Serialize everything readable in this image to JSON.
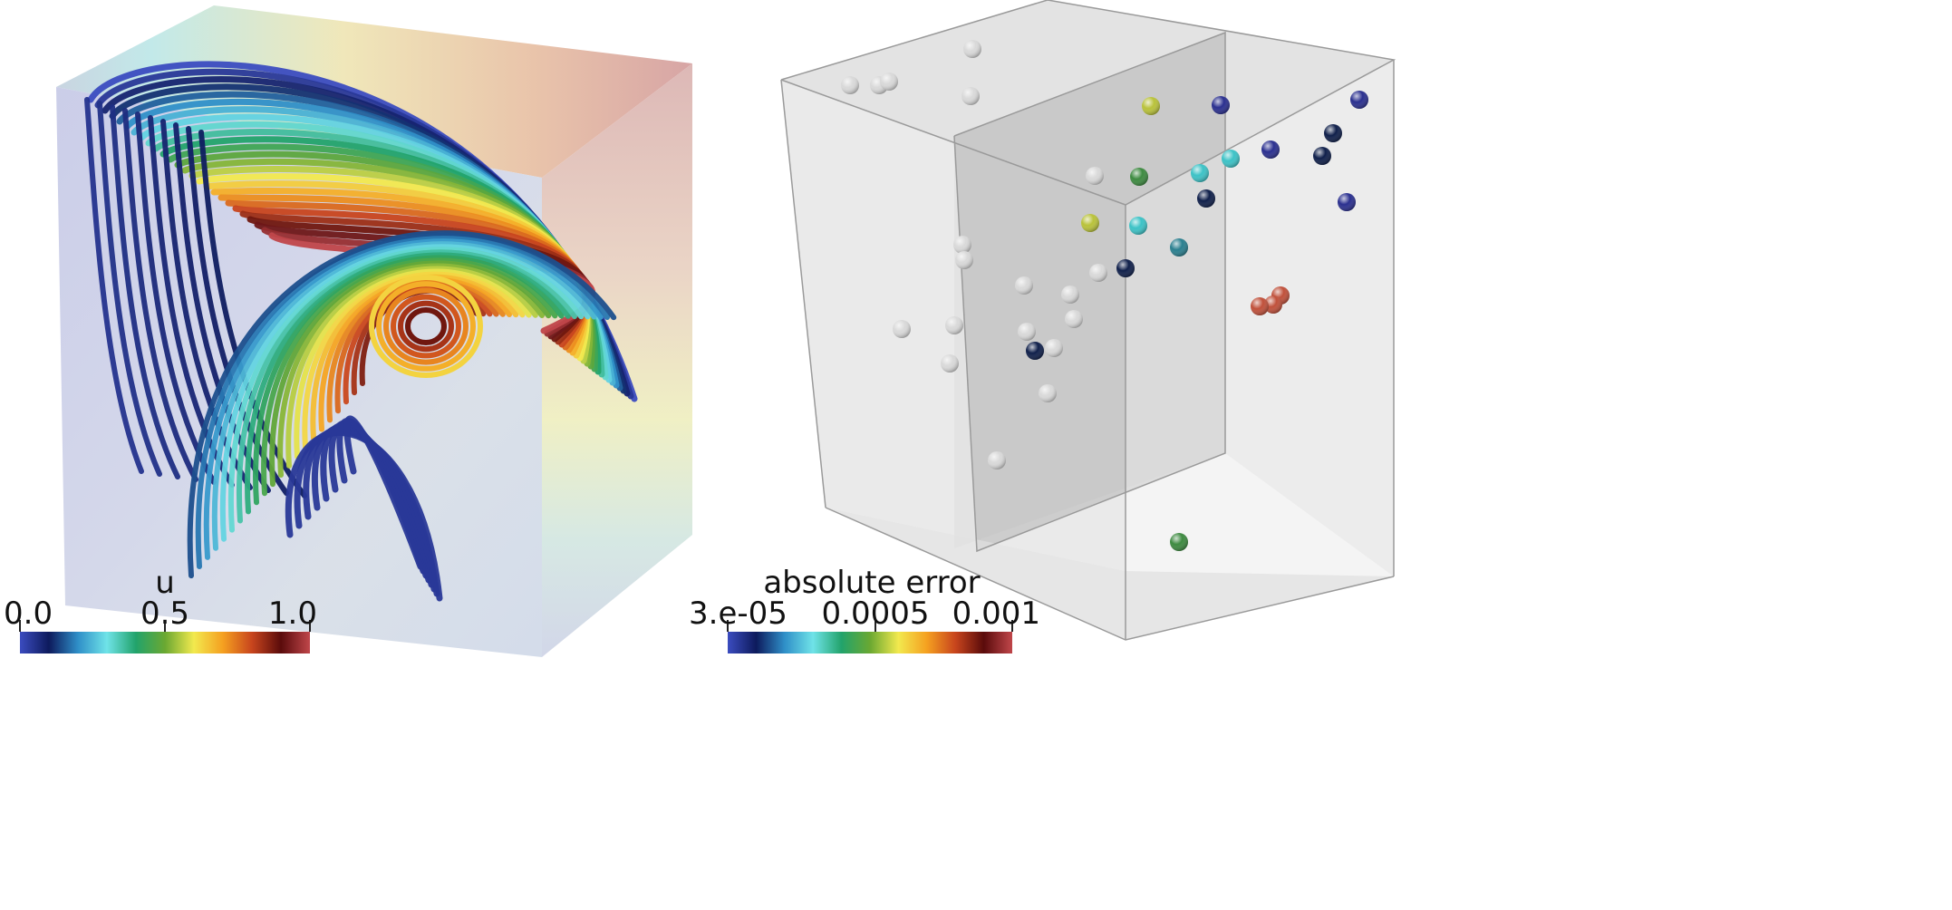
{
  "panels": [
    {
      "id": "streamlines",
      "colorbar": {
        "title": "u",
        "ticks": [
          "0.0",
          "0.5",
          "1.0"
        ],
        "colors": [
          "#3b4cc0",
          "#0d1a5c",
          "#2f8fc8",
          "#6fe3e8",
          "#22a36b",
          "#6aa832",
          "#f2e94e",
          "#f5a020",
          "#c8451d",
          "#5a0b0b",
          "#c0464a"
        ]
      }
    },
    {
      "id": "points",
      "colorbar": {
        "title": "absolute error",
        "ticks": [
          "3.e-05",
          "0.0005",
          "0.001"
        ],
        "colors": [
          "#3b4cc0",
          "#0d1a5c",
          "#2f8fc8",
          "#6fe3e8",
          "#22a36b",
          "#6aa832",
          "#f2e94e",
          "#f5a020",
          "#c8451d",
          "#5a0b0b",
          "#c0464a"
        ]
      },
      "sample_colors": {
        "neutral": "#d9d9d9",
        "low": "#2a2f8f",
        "deep": "#0f1f4a",
        "cyan": "#3cc2c6",
        "teal": "#2a7f8f",
        "green": "#3d8a40",
        "yellowgreen": "#b9c23a",
        "red": "#c0503a"
      }
    }
  ]
}
